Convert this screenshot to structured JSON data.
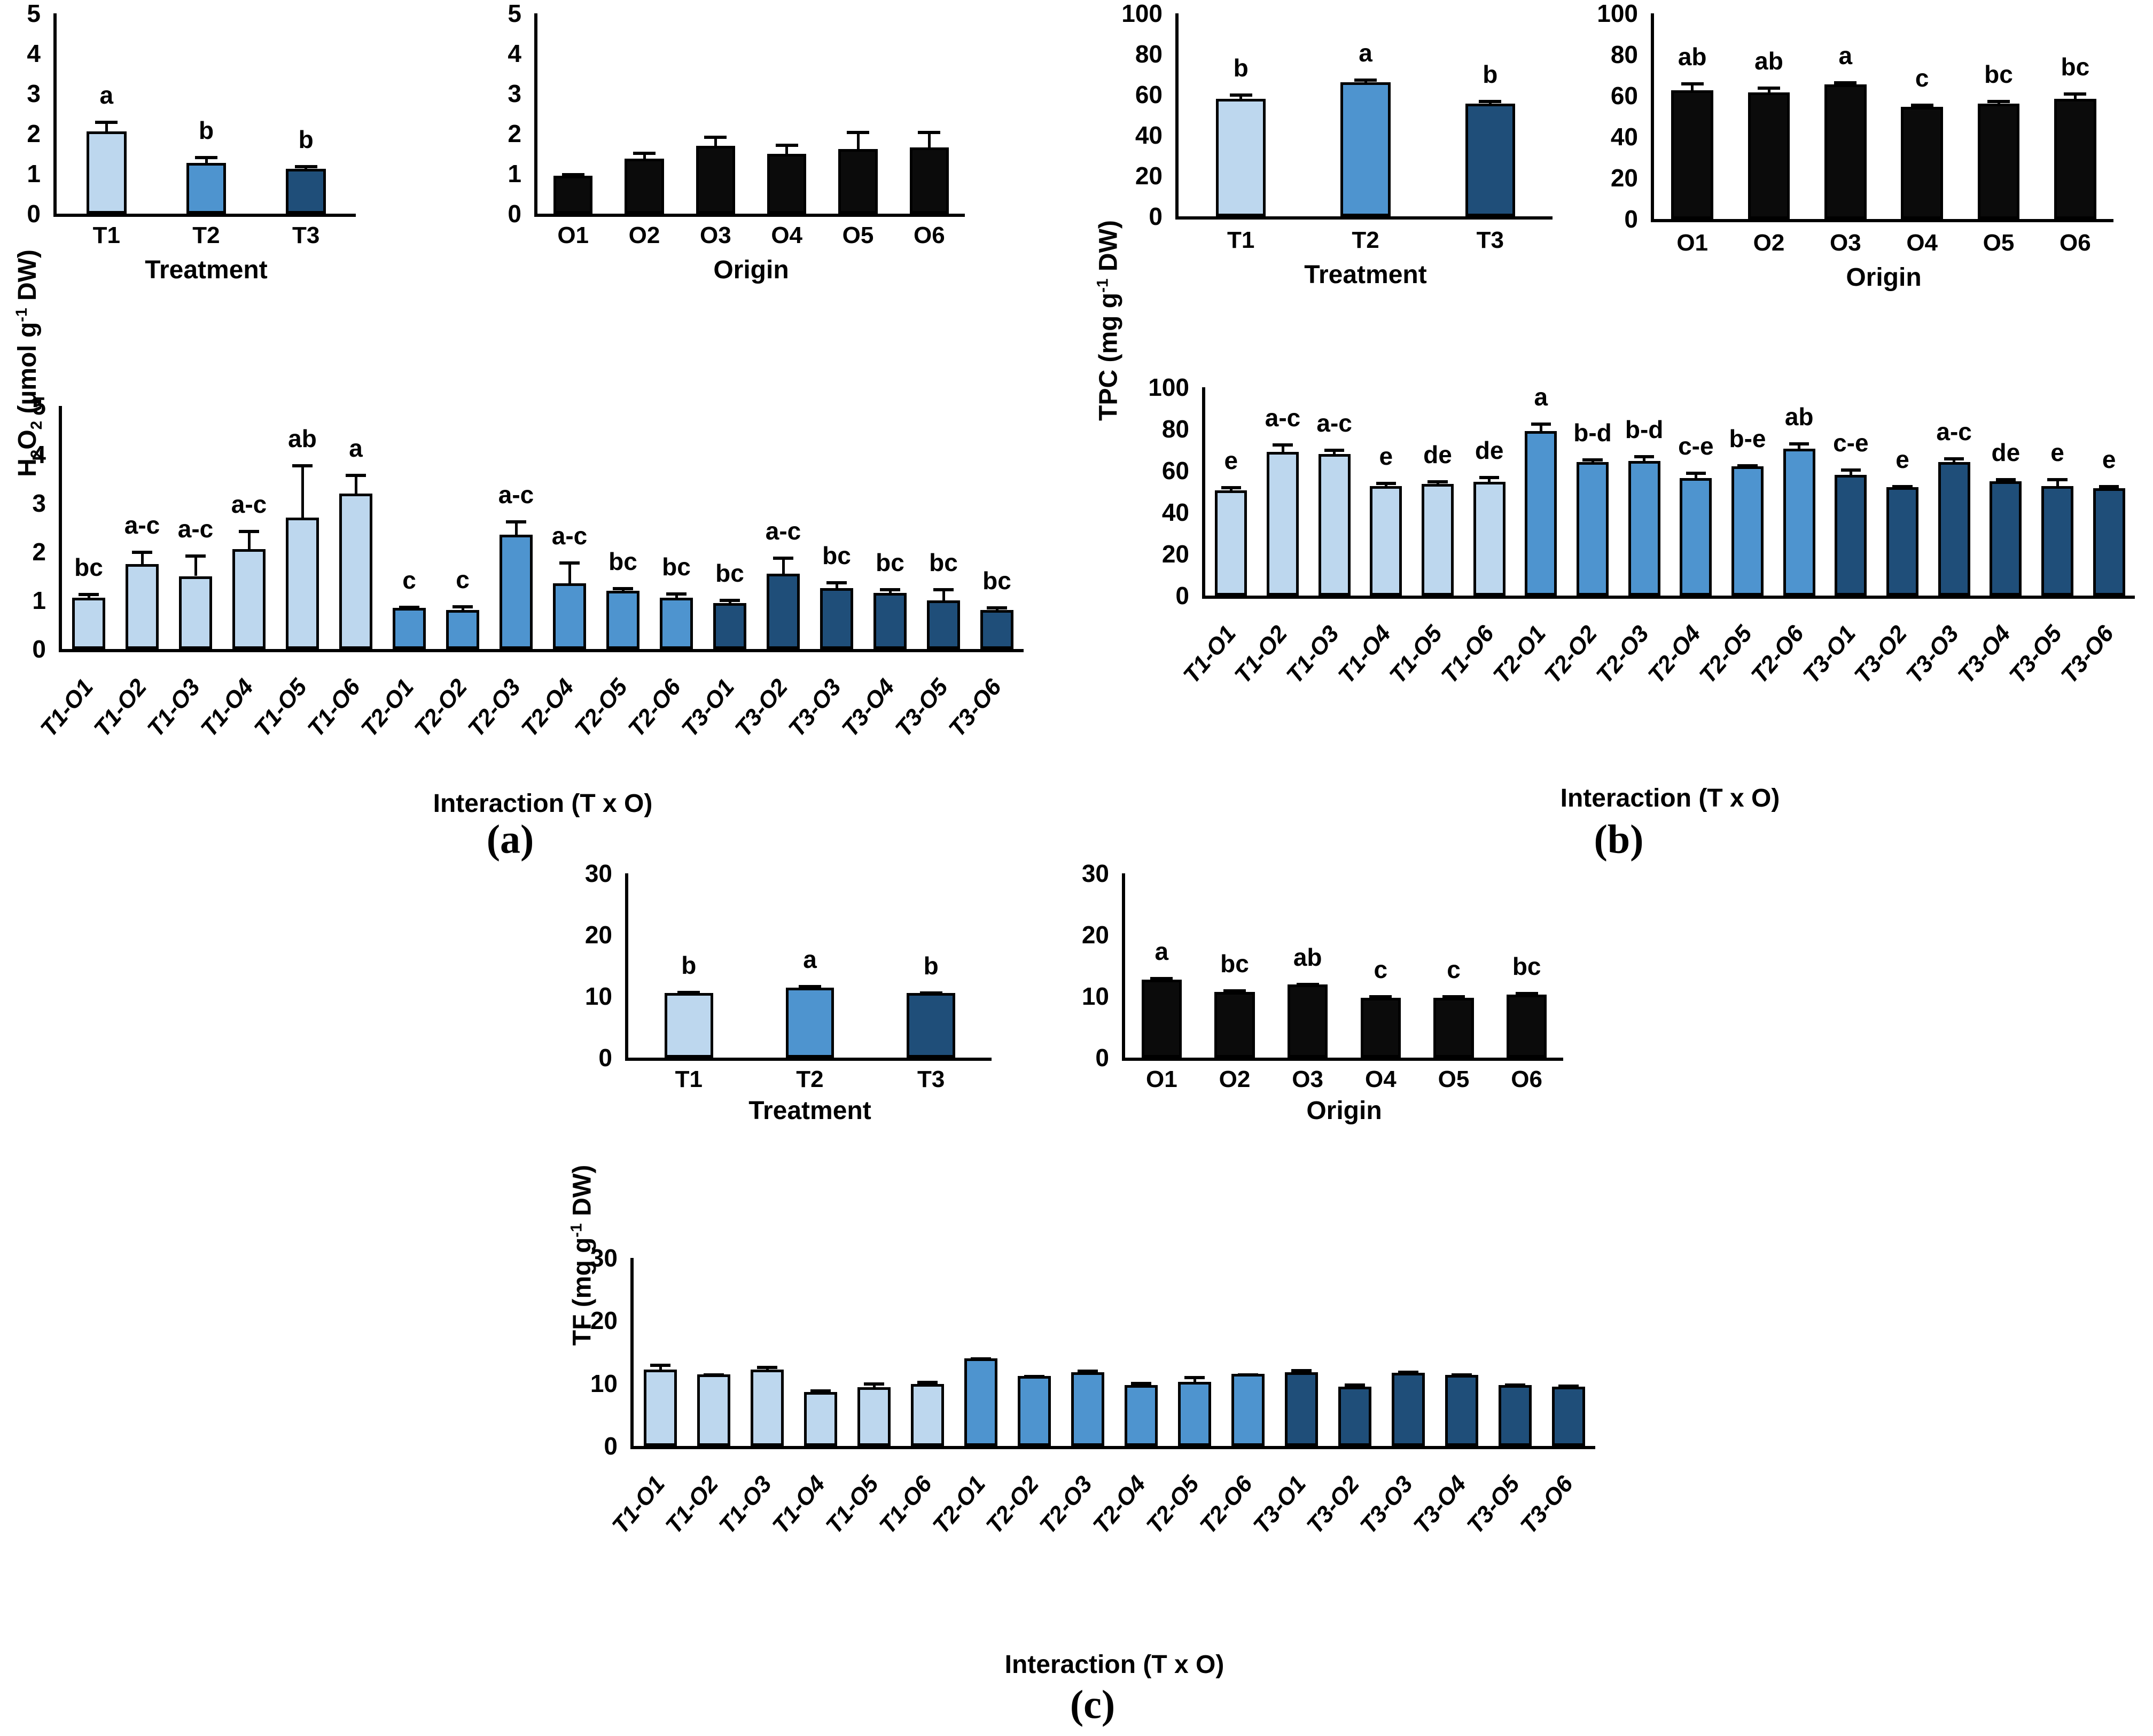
{
  "captions": {
    "a": "(a)",
    "b": "(b)",
    "c": "(c)"
  },
  "palette": {
    "light": "#BDD7EE",
    "medium": "#4E94CF",
    "dark": "#1F4E79",
    "black": "#0B0B0B",
    "axis": "#000000"
  },
  "panels": [
    {
      "id": "a",
      "ylabel": "H~2~O~2~ (µmol g^-1^ DW)",
      "caption": "(a)"
    },
    {
      "id": "b",
      "ylabel": "TPC (mg g^-1^ DW)",
      "caption": "(b)"
    },
    {
      "id": "c",
      "ylabel": "TF (mg g^-1^ DW)",
      "caption": "(c)"
    }
  ],
  "chart_data": [
    {
      "id": "a-treatment",
      "panel": "a",
      "type": "bar",
      "categories": [
        "T1",
        "T2",
        "T3"
      ],
      "values": [
        2.05,
        1.27,
        1.12
      ],
      "errors": [
        0.27,
        0.17,
        0.1
      ],
      "letters": [
        "a",
        "b",
        "b"
      ],
      "bar_colors": [
        "light",
        "medium",
        "dark"
      ],
      "xlabel": "Treatment",
      "ylim": [
        0,
        5
      ],
      "yticks": [
        0,
        1,
        2,
        3,
        4,
        5
      ],
      "grid": false,
      "legend": "none"
    },
    {
      "id": "a-origin",
      "panel": "a",
      "type": "bar",
      "categories": [
        "O1",
        "O2",
        "O3",
        "O4",
        "O5",
        "O6"
      ],
      "values": [
        0.95,
        1.37,
        1.7,
        1.5,
        1.62,
        1.65
      ],
      "errors": [
        0.06,
        0.18,
        0.25,
        0.25,
        0.45,
        0.42
      ],
      "letters": null,
      "bar_colors": [
        "black",
        "black",
        "black",
        "black",
        "black",
        "black"
      ],
      "xlabel": "Origin",
      "ylim": [
        0,
        5
      ],
      "yticks": [
        0,
        1,
        2,
        3,
        4,
        5
      ],
      "grid": false,
      "legend": "none"
    },
    {
      "id": "a-interaction",
      "panel": "a",
      "type": "bar",
      "categories": [
        "T1-O1",
        "T1-O2",
        "T1-O3",
        "T1-O4",
        "T1-O5",
        "T1-O6",
        "T2-O1",
        "T2-O2",
        "T2-O3",
        "T2-O4",
        "T2-O5",
        "T2-O6",
        "T3-O1",
        "T3-O2",
        "T3-O3",
        "T3-O4",
        "T3-O5",
        "T3-O6"
      ],
      "values": [
        1.05,
        1.75,
        1.5,
        2.05,
        2.7,
        3.2,
        0.85,
        0.8,
        2.35,
        1.35,
        1.2,
        1.05,
        0.95,
        1.55,
        1.25,
        1.15,
        1.0,
        0.8
      ],
      "errors": [
        0.1,
        0.27,
        0.45,
        0.4,
        1.1,
        0.4,
        0.04,
        0.1,
        0.3,
        0.45,
        0.08,
        0.12,
        0.08,
        0.35,
        0.15,
        0.1,
        0.25,
        0.08
      ],
      "letters": [
        "bc",
        "a-c",
        "a-c",
        "a-c",
        "ab",
        "a",
        "c",
        "c",
        "a-c",
        "a-c",
        "bc",
        "bc",
        "bc",
        "a-c",
        "bc",
        "bc",
        "bc",
        "bc"
      ],
      "bar_colors": [
        "light",
        "light",
        "light",
        "light",
        "light",
        "light",
        "medium",
        "medium",
        "medium",
        "medium",
        "medium",
        "medium",
        "dark",
        "dark",
        "dark",
        "dark",
        "dark",
        "dark"
      ],
      "xlabel": "Interaction (T x O)",
      "ylim": [
        0,
        5
      ],
      "yticks": [
        0,
        1,
        2,
        3,
        4,
        5
      ],
      "grid": false,
      "legend": "none"
    },
    {
      "id": "b-treatment",
      "panel": "b",
      "type": "bar",
      "categories": [
        "T1",
        "T2",
        "T3"
      ],
      "values": [
        58,
        66,
        55.5
      ],
      "errors": [
        2.5,
        2,
        1.8
      ],
      "letters": [
        "b",
        "a",
        "b"
      ],
      "bar_colors": [
        "light",
        "medium",
        "dark"
      ],
      "xlabel": "Treatment",
      "ylim": [
        0,
        100
      ],
      "yticks": [
        0,
        20,
        40,
        60,
        80,
        100
      ],
      "grid": false,
      "legend": "none"
    },
    {
      "id": "b-origin",
      "panel": "b",
      "type": "bar",
      "categories": [
        "O1",
        "O2",
        "O3",
        "O4",
        "O5",
        "O6"
      ],
      "values": [
        62.5,
        61.5,
        65.5,
        54.5,
        56,
        58.5
      ],
      "errors": [
        4,
        3,
        1.5,
        1.5,
        2,
        3
      ],
      "letters": [
        "ab",
        "ab",
        "a",
        "c",
        "bc",
        "bc"
      ],
      "bar_colors": [
        "black",
        "black",
        "black",
        "black",
        "black",
        "black"
      ],
      "xlabel": "Origin",
      "ylim": [
        0,
        100
      ],
      "yticks": [
        0,
        20,
        40,
        60,
        80,
        100
      ],
      "grid": false,
      "legend": "none"
    },
    {
      "id": "b-interaction",
      "panel": "b",
      "type": "bar",
      "categories": [
        "T1-O1",
        "T1-O2",
        "T1-O3",
        "T1-O4",
        "T1-O5",
        "T1-O6",
        "T2-O1",
        "T2-O2",
        "T2-O3",
        "T2-O4",
        "T2-O5",
        "T2-O6",
        "T3-O1",
        "T3-O2",
        "T3-O3",
        "T3-O4",
        "T3-O5",
        "T3-O6"
      ],
      "values": [
        50.5,
        69,
        68,
        52.5,
        53.5,
        54.5,
        79,
        64,
        64.5,
        56.5,
        62,
        70.5,
        58,
        52,
        64,
        55,
        52.5,
        51.5
      ],
      "errors": [
        2,
        4,
        2.5,
        2,
        2,
        3,
        4,
        2,
        3,
        3,
        1,
        3,
        3,
        1,
        2.5,
        1.5,
        4,
        1.5
      ],
      "letters": [
        "e",
        "a-c",
        "a-c",
        "e",
        "de",
        "de",
        "a",
        "b-d",
        "b-d",
        "c-e",
        "b-e",
        "ab",
        "c-e",
        "e",
        "a-c",
        "de",
        "e",
        "e"
      ],
      "bar_colors": [
        "light",
        "light",
        "light",
        "light",
        "light",
        "light",
        "medium",
        "medium",
        "medium",
        "medium",
        "medium",
        "medium",
        "dark",
        "dark",
        "dark",
        "dark",
        "dark",
        "dark"
      ],
      "xlabel": "Interaction (T x O)",
      "ylim": [
        0,
        100
      ],
      "yticks": [
        0,
        20,
        40,
        60,
        80,
        100
      ],
      "grid": false,
      "legend": "none"
    },
    {
      "id": "c-treatment",
      "panel": "c",
      "type": "bar",
      "categories": [
        "T1",
        "T2",
        "T3"
      ],
      "values": [
        10.5,
        11.4,
        10.5
      ],
      "errors": [
        0.4,
        0.4,
        0.3
      ],
      "letters": [
        "b",
        "a",
        "b"
      ],
      "bar_colors": [
        "light",
        "medium",
        "dark"
      ],
      "xlabel": "Treatment",
      "ylim": [
        0,
        30
      ],
      "yticks": [
        0,
        10,
        20,
        30
      ],
      "grid": false,
      "legend": "none"
    },
    {
      "id": "c-origin",
      "panel": "c",
      "type": "bar",
      "categories": [
        "O1",
        "O2",
        "O3",
        "O4",
        "O5",
        "O6"
      ],
      "values": [
        12.7,
        10.7,
        11.9,
        9.7,
        9.7,
        10.3
      ],
      "errors": [
        0.4,
        0.4,
        0.3,
        0.5,
        0.5,
        0.4
      ],
      "letters": [
        "a",
        "bc",
        "ab",
        "c",
        "c",
        "bc"
      ],
      "bar_colors": [
        "black",
        "black",
        "black",
        "black",
        "black",
        "black"
      ],
      "xlabel": "Origin",
      "ylim": [
        0,
        30
      ],
      "yticks": [
        0,
        10,
        20,
        30
      ],
      "grid": false,
      "legend": "none"
    },
    {
      "id": "c-interaction",
      "panel": "c",
      "type": "bar",
      "categories": [
        "T1-O1",
        "T1-O2",
        "T1-O3",
        "T1-O4",
        "T1-O5",
        "T1-O6",
        "T2-O1",
        "T2-O2",
        "T2-O3",
        "T2-O4",
        "T2-O5",
        "T2-O6",
        "T3-O1",
        "T3-O2",
        "T3-O3",
        "T3-O4",
        "T3-O5",
        "T3-O6"
      ],
      "values": [
        12.2,
        11.4,
        12.2,
        8.6,
        9.4,
        9.9,
        14.0,
        11.2,
        11.8,
        9.7,
        10.2,
        11.5,
        11.8,
        9.5,
        11.7,
        11.3,
        9.7,
        9.5
      ],
      "errors": [
        0.9,
        0.15,
        0.6,
        0.4,
        0.7,
        0.5,
        0.15,
        0.15,
        0.4,
        0.5,
        1.0,
        0.1,
        0.5,
        0.5,
        0.3,
        0.3,
        0.3,
        0.3
      ],
      "letters": null,
      "bar_colors": [
        "light",
        "light",
        "light",
        "light",
        "light",
        "light",
        "medium",
        "medium",
        "medium",
        "medium",
        "medium",
        "medium",
        "dark",
        "dark",
        "dark",
        "dark",
        "dark",
        "dark"
      ],
      "xlabel": "Interaction (T x O)",
      "ylim": [
        0,
        30
      ],
      "yticks": [
        0,
        10,
        20,
        30
      ],
      "grid": false,
      "legend": "none"
    }
  ]
}
